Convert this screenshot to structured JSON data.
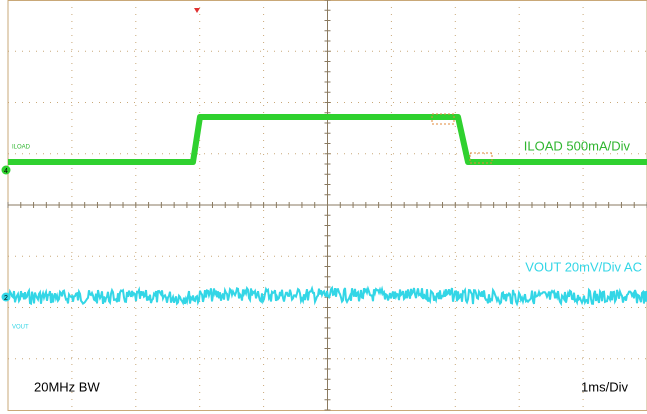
{
  "channels": {
    "iload": {
      "label": "ILOAD 500mA/Div",
      "tag": "ILOAD",
      "marker": "4"
    },
    "vout": {
      "label": "VOUT 20mV/Div AC",
      "tag": "VOUT",
      "marker": "2"
    }
  },
  "footer": {
    "bandwidth": "20MHz BW",
    "timebase": "1ms/Div"
  }
}
